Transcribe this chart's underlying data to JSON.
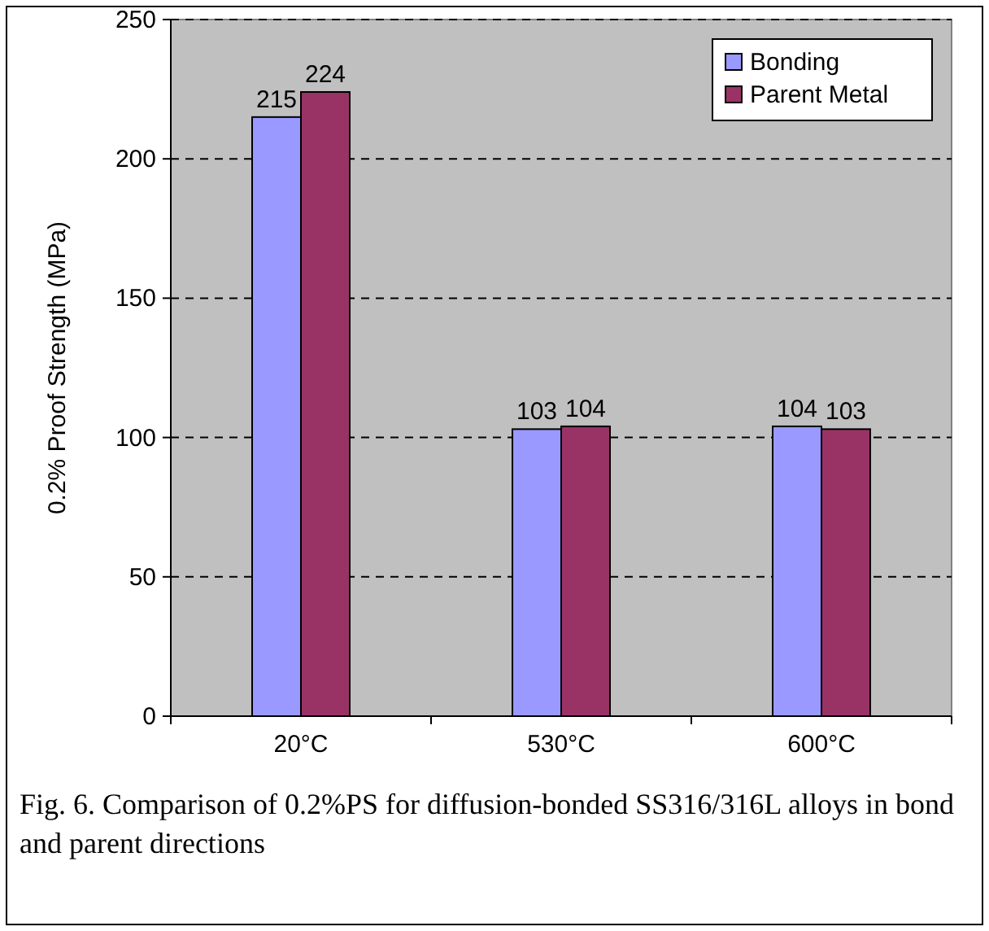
{
  "chart_data": {
    "type": "bar",
    "ylabel": "0.2% Proof Strength (MPa)",
    "categories": [
      "20°C",
      "530°C",
      "600°C"
    ],
    "series": [
      {
        "name": "Bonding",
        "color": "#9999ff",
        "values": [
          215,
          103,
          104
        ]
      },
      {
        "name": "Parent Metal",
        "color": "#993366",
        "values": [
          224,
          104,
          103
        ]
      }
    ],
    "ylim": [
      0,
      250
    ],
    "yticks": [
      0,
      50,
      100,
      150,
      200,
      250
    ],
    "grid": "y",
    "legend": "top right",
    "data_labels": true,
    "annotations": [
      "Fig. 6. Comparison of 0.2%PS for diffusion-bonded SS316/316L alloys in bond and parent directions"
    ]
  }
}
